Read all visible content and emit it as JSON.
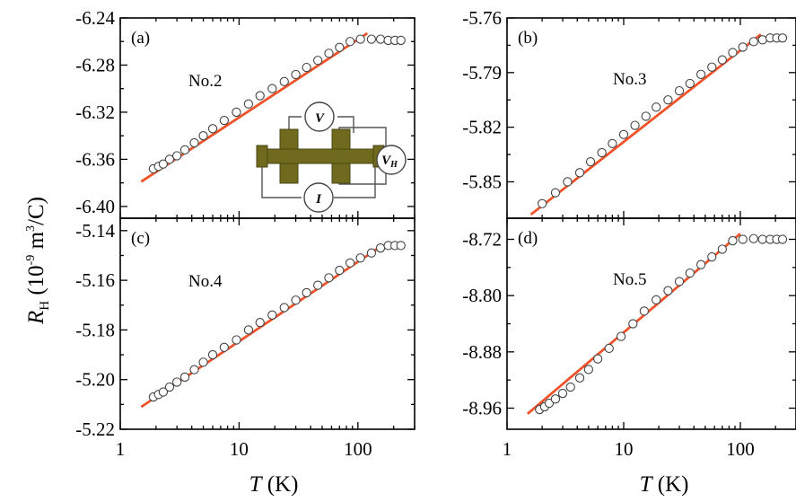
{
  "figure": {
    "ylabel_main": "R",
    "ylabel_sub": "H",
    "ylabel_units": " (10",
    "ylabel_exp": "-9",
    "ylabel_units2": " m",
    "ylabel_exp2": "3",
    "ylabel_units3": "/C)",
    "xlabel_var": "T",
    "xlabel_unit": " (K)"
  },
  "inset": {
    "v_label": "V",
    "vh_label": "V",
    "vh_sub": "H",
    "i_label": "I",
    "colors": {
      "bar": "#6f6a1e",
      "wire": "#555555"
    }
  },
  "colors": {
    "fit_line": "#f0522a",
    "markers": "#444444"
  },
  "chart_data": [
    {
      "panel": "(a)",
      "sample": "No.2",
      "type": "scatter",
      "xscale": "log",
      "xlim": [
        1,
        300
      ],
      "ylim": [
        -6.41,
        -6.24
      ],
      "yticks": [
        -6.24,
        -6.28,
        -6.32,
        -6.36,
        -6.4
      ],
      "ytick_labels": [
        "-6.24",
        "-6.28",
        "-6.32",
        "-6.36",
        "-6.40"
      ],
      "xticks": [
        1,
        10,
        100
      ],
      "xtick_labels": [
        "1",
        "10",
        "100"
      ],
      "x": [
        1.9,
        2.1,
        2.3,
        2.6,
        3.0,
        3.5,
        4.2,
        5.0,
        6.0,
        7.5,
        9.5,
        12,
        15,
        19,
        24,
        30,
        37,
        46,
        57,
        70,
        86,
        105,
        130,
        155,
        180,
        205,
        230
      ],
      "y": [
        -6.368,
        -6.366,
        -6.364,
        -6.36,
        -6.357,
        -6.352,
        -6.346,
        -6.34,
        -6.334,
        -6.327,
        -6.32,
        -6.313,
        -6.306,
        -6.3,
        -6.294,
        -6.288,
        -6.282,
        -6.276,
        -6.27,
        -6.265,
        -6.26,
        -6.258,
        -6.258,
        -6.258,
        -6.259,
        -6.259,
        -6.259
      ],
      "fit": {
        "x": [
          1.5,
          120
        ],
        "y": [
          -6.379,
          -6.253
        ]
      }
    },
    {
      "panel": "(b)",
      "sample": "No.3",
      "type": "scatter",
      "xscale": "log",
      "xlim": [
        1,
        300
      ],
      "ylim": [
        -5.87,
        -5.76
      ],
      "yticks": [
        -5.76,
        -5.79,
        -5.82,
        -5.85
      ],
      "ytick_labels": [
        "-5.76",
        "-5.79",
        "-5.82",
        "-5.85"
      ],
      "xticks": [
        1,
        10,
        100
      ],
      "xtick_labels": [
        "1",
        "10",
        "100"
      ],
      "x": [
        2.0,
        2.6,
        3.3,
        4.2,
        5.2,
        6.5,
        8.0,
        10,
        12.5,
        15.5,
        19,
        24,
        30,
        37,
        46,
        57,
        70,
        86,
        105,
        130,
        155,
        180,
        205,
        230
      ],
      "y": [
        -5.862,
        -5.856,
        -5.85,
        -5.845,
        -5.839,
        -5.834,
        -5.829,
        -5.824,
        -5.819,
        -5.814,
        -5.809,
        -5.805,
        -5.8,
        -5.796,
        -5.791,
        -5.787,
        -5.783,
        -5.779,
        -5.776,
        -5.773,
        -5.772,
        -5.771,
        -5.771,
        -5.771
      ],
      "fit": {
        "x": [
          1.6,
          150
        ],
        "y": [
          -5.868,
          -5.769
        ]
      }
    },
    {
      "panel": "(c)",
      "sample": "No.4",
      "type": "scatter",
      "xscale": "log",
      "xlim": [
        1,
        300
      ],
      "ylim": [
        -5.22,
        -5.135
      ],
      "yticks": [
        -5.14,
        -5.16,
        -5.18,
        -5.2,
        -5.22
      ],
      "ytick_labels": [
        "-5.14",
        "-5.16",
        "-5.18",
        "-5.20",
        "-5.22"
      ],
      "xticks": [
        1,
        10,
        100
      ],
      "xtick_labels": [
        "1",
        "10",
        "100"
      ],
      "x": [
        1.9,
        2.1,
        2.3,
        2.6,
        3.0,
        3.5,
        4.2,
        5.0,
        6.0,
        7.5,
        9.5,
        12,
        15,
        19,
        24,
        30,
        37,
        46,
        57,
        70,
        86,
        105,
        130,
        155,
        180,
        205,
        230
      ],
      "y": [
        -5.207,
        -5.206,
        -5.205,
        -5.203,
        -5.201,
        -5.199,
        -5.196,
        -5.193,
        -5.19,
        -5.187,
        -5.184,
        -5.18,
        -5.177,
        -5.174,
        -5.171,
        -5.168,
        -5.165,
        -5.162,
        -5.159,
        -5.156,
        -5.153,
        -5.151,
        -5.149,
        -5.147,
        -5.146,
        -5.146,
        -5.146
      ],
      "fit": {
        "x": [
          1.5,
          160
        ],
        "y": [
          -5.211,
          -5.146
        ]
      }
    },
    {
      "panel": "(d)",
      "sample": "No.5",
      "type": "scatter",
      "xscale": "log",
      "xlim": [
        1,
        300
      ],
      "ylim": [
        -8.99,
        -8.69
      ],
      "yticks": [
        -8.72,
        -8.8,
        -8.88,
        -8.96
      ],
      "ytick_labels": [
        "-8.72",
        "-8.80",
        "-8.88",
        "-8.96"
      ],
      "xticks": [
        1,
        10,
        100
      ],
      "xtick_labels": [
        "1",
        "10",
        "100"
      ],
      "x": [
        1.9,
        2.1,
        2.3,
        2.6,
        3.0,
        3.5,
        4.2,
        5.0,
        6.0,
        7.5,
        9.5,
        12,
        15,
        19,
        24,
        30,
        37,
        46,
        57,
        70,
        86,
        105,
        130,
        155,
        180,
        205,
        230
      ],
      "y": [
        -8.962,
        -8.958,
        -8.953,
        -8.947,
        -8.939,
        -8.93,
        -8.917,
        -8.905,
        -8.89,
        -8.875,
        -8.858,
        -8.84,
        -8.822,
        -8.806,
        -8.793,
        -8.78,
        -8.768,
        -8.756,
        -8.745,
        -8.734,
        -8.722,
        -8.72,
        -8.719,
        -8.72,
        -8.72,
        -8.72,
        -8.72
      ],
      "fit": {
        "x": [
          1.5,
          100
        ],
        "y": [
          -8.968,
          -8.712
        ]
      }
    }
  ]
}
